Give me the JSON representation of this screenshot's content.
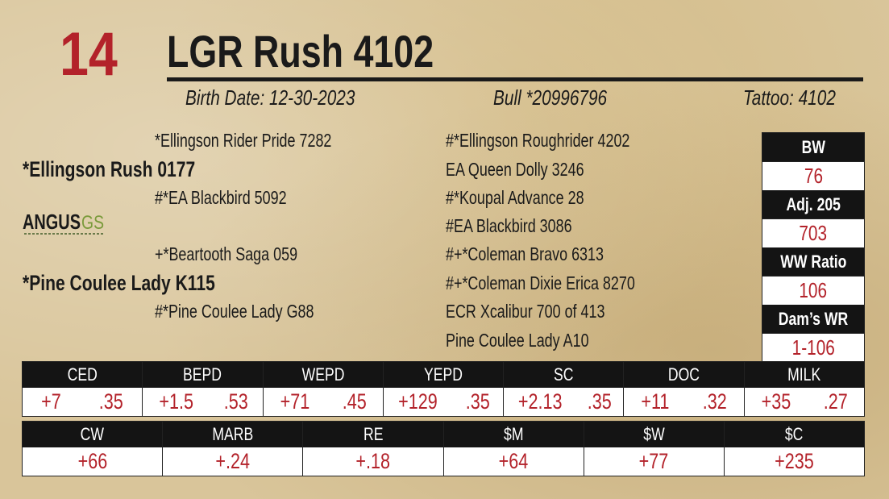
{
  "lot": "14",
  "name": "LGR Rush 4102",
  "birth_date": "Birth Date: 12-30-2023",
  "registration": "Bull *20996796",
  "tattoo": "Tattoo: 4102",
  "pedigree": {
    "sire_sire": "*Ellingson Rider Pride 7282",
    "sire": "*Ellingson Rush 0177",
    "sire_dam": "#*EA Blackbird 5092",
    "dam_sire": "+*Beartooth Saga 059",
    "dam": "*Pine Coulee Lady K115",
    "dam_dam": "#*Pine Coulee Lady G88"
  },
  "logo": {
    "word": "ANGUS",
    "mark": "GS"
  },
  "great_grandparents": [
    "#*Ellingson Roughrider 4202",
    "EA Queen Dolly 3246",
    "#*Koupal Advance 28",
    "#EA Blackbird 3086",
    "#+*Coleman Bravo 6313",
    "#+*Coleman Dixie Erica 8270",
    "ECR Xcalibur 700 of 413",
    "Pine Coulee Lady A10"
  ],
  "stats": [
    {
      "label": "BW",
      "value": "76"
    },
    {
      "label": "Adj. 205",
      "value": "703"
    },
    {
      "label": "WW Ratio",
      "value": "106"
    },
    {
      "label": "Dam’s WR",
      "value": "1-106"
    }
  ],
  "epds": [
    {
      "label": "CED",
      "epd": "+7",
      "acc": ".35"
    },
    {
      "label": "BEPD",
      "epd": "+1.5",
      "acc": ".53"
    },
    {
      "label": "WEPD",
      "epd": "+71",
      "acc": ".45"
    },
    {
      "label": "YEPD",
      "epd": "+129",
      "acc": ".35"
    },
    {
      "label": "SC",
      "epd": "+2.13",
      "acc": ".35"
    },
    {
      "label": "DOC",
      "epd": "+11",
      "acc": ".32"
    },
    {
      "label": "MILK",
      "epd": "+35",
      "acc": ".27"
    }
  ],
  "indexes": [
    {
      "label": "CW",
      "value": "+66"
    },
    {
      "label": "MARB",
      "value": "+.24"
    },
    {
      "label": "RE",
      "value": "+.18"
    },
    {
      "label": "$M",
      "value": "+64"
    },
    {
      "label": "$W",
      "value": "+77"
    },
    {
      "label": "$C",
      "value": "+235"
    }
  ]
}
